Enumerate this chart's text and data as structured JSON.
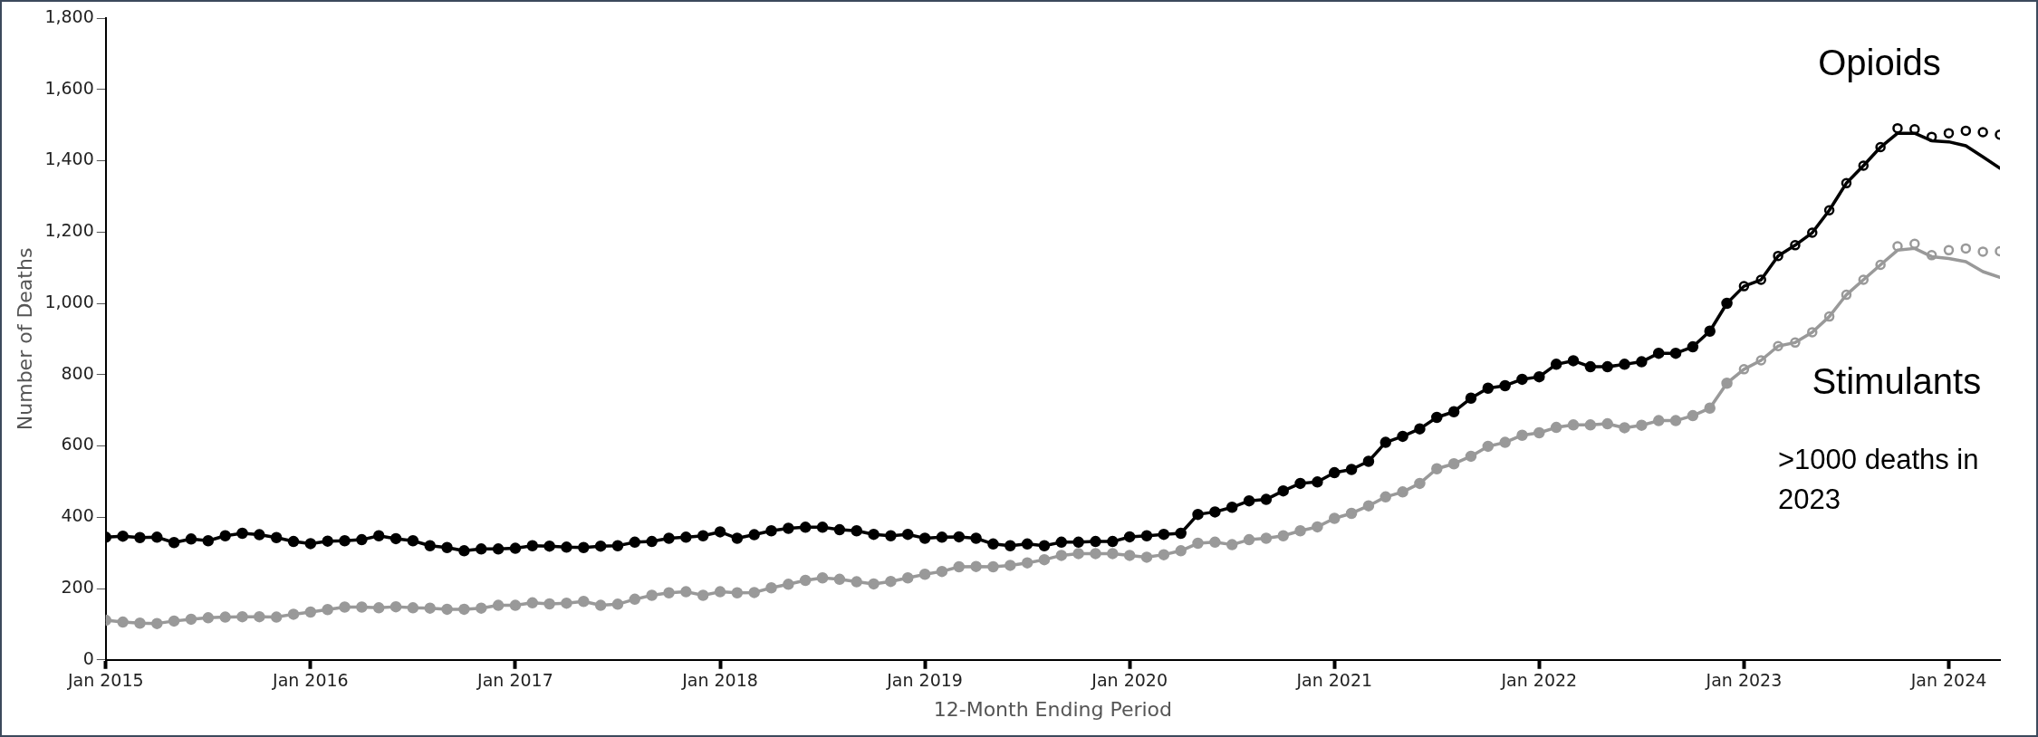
{
  "chart_data": {
    "type": "line",
    "xlabel": "12-Month Ending Period",
    "ylabel": "Number of Deaths",
    "xlim": [
      "2015-01",
      "2024-04"
    ],
    "xticks": [
      {
        "value": "2015-01",
        "label": "Jan 2015"
      },
      {
        "value": "2016-01",
        "label": "Jan 2016"
      },
      {
        "value": "2017-01",
        "label": "Jan 2017"
      },
      {
        "value": "2018-01",
        "label": "Jan 2018"
      },
      {
        "value": "2019-01",
        "label": "Jan 2019"
      },
      {
        "value": "2020-01",
        "label": "Jan 2020"
      },
      {
        "value": "2021-01",
        "label": "Jan 2021"
      },
      {
        "value": "2022-01",
        "label": "Jan 2022"
      },
      {
        "value": "2023-01",
        "label": "Jan 2023"
      },
      {
        "value": "2024-01",
        "label": "Jan 2024"
      }
    ],
    "ylim": [
      0,
      1800
    ],
    "yticks": [
      0,
      200,
      400,
      600,
      800,
      {
        "value": 1000,
        "label": "1,000"
      },
      {
        "value": 1200,
        "label": "1,200"
      },
      {
        "value": 1400,
        "label": "1,400"
      },
      {
        "value": 1600,
        "label": "1,600"
      },
      {
        "value": 1800,
        "label": "1,800"
      }
    ],
    "grid": false,
    "legend": false,
    "marker": "circle",
    "line_style": "solid",
    "series": [
      {
        "color": "#999999",
        "x": [
          "2015-01",
          "2015-02",
          "2015-03",
          "2015-04",
          "2015-05",
          "2015-06",
          "2015-07",
          "2015-08",
          "2015-09",
          "2015-10",
          "2015-11",
          "2015-12",
          "2016-01",
          "2016-02",
          "2016-03",
          "2016-04",
          "2016-05",
          "2016-06",
          "2016-07",
          "2016-08",
          "2016-09",
          "2016-10",
          "2016-11",
          "2016-12",
          "2017-01",
          "2017-02",
          "2017-03",
          "2017-04",
          "2017-05",
          "2017-06",
          "2017-07",
          "2017-08",
          "2017-09",
          "2017-10",
          "2017-11",
          "2017-12",
          "2018-01",
          "2018-02",
          "2018-03",
          "2018-04",
          "2018-05",
          "2018-06",
          "2018-07",
          "2018-08",
          "2018-09",
          "2018-10",
          "2018-11",
          "2018-12",
          "2019-01",
          "2019-02",
          "2019-03",
          "2019-04",
          "2019-05",
          "2019-06",
          "2019-07",
          "2019-08",
          "2019-09",
          "2019-10",
          "2019-11",
          "2019-12",
          "2020-01",
          "2020-02",
          "2020-03",
          "2020-04",
          "2020-05",
          "2020-06",
          "2020-07",
          "2020-08",
          "2020-09",
          "2020-10",
          "2020-11",
          "2020-12",
          "2021-01",
          "2021-02",
          "2021-03",
          "2021-04",
          "2021-05",
          "2021-06",
          "2021-07",
          "2021-08",
          "2021-09",
          "2021-10",
          "2021-11",
          "2021-12",
          "2022-01",
          "2022-02",
          "2022-03",
          "2022-04",
          "2022-05",
          "2022-06",
          "2022-07",
          "2022-08",
          "2022-09",
          "2022-10",
          "2022-11",
          "2022-12"
        ],
        "values": [
          111,
          106,
          103,
          102,
          109,
          114,
          118,
          120,
          121,
          121,
          120,
          128,
          134,
          141,
          148,
          148,
          146,
          149,
          146,
          145,
          142,
          142,
          145,
          153,
          153,
          160,
          157,
          159,
          164,
          153,
          156,
          170,
          181,
          188,
          191,
          181,
          191,
          188,
          189,
          202,
          212,
          223,
          230,
          226,
          219,
          213,
          220,
          230,
          240,
          248,
          261,
          262,
          261,
          265,
          272,
          281,
          293,
          298,
          298,
          298,
          293,
          288,
          295,
          306,
          327,
          330,
          323,
          337,
          341,
          348,
          362,
          373,
          397,
          411,
          432,
          457,
          471,
          495,
          536,
          550,
          571,
          599,
          610,
          630,
          637,
          652,
          659,
          659,
          662,
          651,
          658,
          671,
          671,
          685,
          706,
          776
        ]
      },
      {
        "name": "Stimulants",
        "color": "#999999",
        "marker": "none",
        "x": [
          "2022-12",
          "2023-01",
          "2023-02",
          "2023-03",
          "2023-04",
          "2023-05",
          "2023-06",
          "2023-07",
          "2023-08",
          "2023-09",
          "2023-10",
          "2023-11",
          "2023-12",
          "2024-01",
          "2024-02",
          "2024-03",
          "2024-04"
        ],
        "values": [
          776,
          815,
          840,
          880,
          890,
          919,
          963,
          1024,
          1066,
          1108,
          1149,
          1154,
          1131,
          1126,
          1117,
          1089,
          1073
        ]
      },
      {
        "type": "scatter",
        "color": "#999999",
        "x": [
          "2023-01",
          "2023-02",
          "2023-03",
          "2023-04",
          "2023-05",
          "2023-06",
          "2023-07",
          "2023-08",
          "2023-09",
          "2023-10",
          "2023-11",
          "2023-12",
          "2024-01",
          "2024-02",
          "2024-03",
          "2024-04"
        ],
        "values": [
          815,
          840,
          880,
          890,
          919,
          963,
          1024,
          1066,
          1108,
          1160,
          1167,
          1135,
          1149,
          1154,
          1145,
          1146
        ]
      },
      {
        "color": "#000000",
        "x": [
          "2015-01",
          "2015-02",
          "2015-03",
          "2015-04",
          "2015-05",
          "2015-06",
          "2015-07",
          "2015-08",
          "2015-09",
          "2015-10",
          "2015-11",
          "2015-12",
          "2016-01",
          "2016-02",
          "2016-03",
          "2016-04",
          "2016-05",
          "2016-06",
          "2016-07",
          "2016-08",
          "2016-09",
          "2016-10",
          "2016-11",
          "2016-12",
          "2017-01",
          "2017-02",
          "2017-03",
          "2017-04",
          "2017-05",
          "2017-06",
          "2017-07",
          "2017-08",
          "2017-09",
          "2017-10",
          "2017-11",
          "2017-12",
          "2018-01",
          "2018-02",
          "2018-03",
          "2018-04",
          "2018-05",
          "2018-06",
          "2018-07",
          "2018-08",
          "2018-09",
          "2018-10",
          "2018-11",
          "2018-12",
          "2019-01",
          "2019-02",
          "2019-03",
          "2019-04",
          "2019-05",
          "2019-06",
          "2019-07",
          "2019-08",
          "2019-09",
          "2019-10",
          "2019-11",
          "2019-12",
          "2020-01",
          "2020-02",
          "2020-03",
          "2020-04",
          "2020-05",
          "2020-06",
          "2020-07",
          "2020-08",
          "2020-09",
          "2020-10",
          "2020-11",
          "2020-12",
          "2021-01",
          "2021-02",
          "2021-03",
          "2021-04",
          "2021-05",
          "2021-06",
          "2021-07",
          "2021-08",
          "2021-09",
          "2021-10",
          "2021-11",
          "2021-12",
          "2022-01",
          "2022-02",
          "2022-03",
          "2022-04",
          "2022-05",
          "2022-06",
          "2022-07",
          "2022-08",
          "2022-09",
          "2022-10",
          "2022-11",
          "2022-12"
        ],
        "values": [
          344,
          347,
          343,
          344,
          329,
          339,
          334,
          348,
          355,
          351,
          343,
          332,
          326,
          333,
          334,
          337,
          348,
          340,
          334,
          320,
          315,
          306,
          311,
          311,
          313,
          320,
          319,
          316,
          315,
          319,
          320,
          330,
          332,
          341,
          344,
          348,
          359,
          341,
          351,
          362,
          369,
          372,
          372,
          365,
          362,
          352,
          348,
          352,
          341,
          344,
          345,
          341,
          325,
          320,
          325,
          320,
          330,
          330,
          332,
          332,
          345,
          348,
          352,
          355,
          408,
          415,
          428,
          446,
          450,
          474,
          495,
          499,
          525,
          534,
          557,
          610,
          627,
          648,
          680,
          696,
          734,
          762,
          769,
          787,
          794,
          829,
          839,
          822,
          822,
          829,
          836,
          860,
          860,
          878,
          922,
          1000
        ]
      },
      {
        "name": "Opioids",
        "color": "#000000",
        "marker": "none",
        "x": [
          "2022-12",
          "2023-01",
          "2023-02",
          "2023-03",
          "2023-04",
          "2023-05",
          "2023-06",
          "2023-07",
          "2023-08",
          "2023-09",
          "2023-10",
          "2023-11",
          "2023-12",
          "2024-01",
          "2024-02",
          "2024-03",
          "2024-04"
        ],
        "values": [
          1000,
          1048,
          1066,
          1133,
          1163,
          1198,
          1261,
          1337,
          1386,
          1438,
          1477,
          1477,
          1456,
          1453,
          1442,
          1411,
          1379
        ]
      },
      {
        "type": "scatter",
        "color": "#000000",
        "x": [
          "2023-01",
          "2023-02",
          "2023-03",
          "2023-04",
          "2023-05",
          "2023-06",
          "2023-07",
          "2023-08",
          "2023-09",
          "2023-10",
          "2023-11",
          "2023-12",
          "2024-01",
          "2024-02",
          "2024-03",
          "2024-04"
        ],
        "values": [
          1048,
          1066,
          1133,
          1163,
          1198,
          1261,
          1337,
          1386,
          1438,
          1491,
          1488,
          1467,
          1477,
          1484,
          1480,
          1473
        ]
      }
    ],
    "annotations": [
      ">1000 deaths in 2023"
    ]
  }
}
